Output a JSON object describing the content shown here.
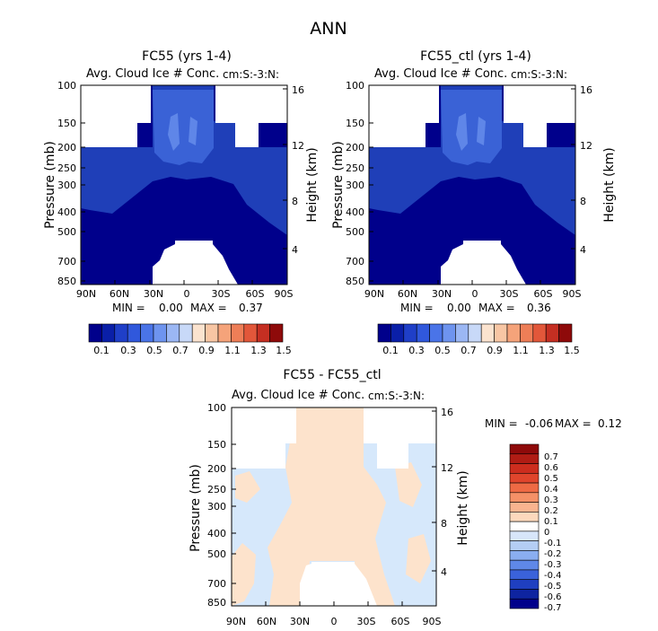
{
  "page_title": "ANN",
  "colors": {
    "field_dark": "#00008b",
    "field_mid": "#1f3fb8",
    "field_light": "#3a62d6",
    "field_lighter": "#5f86e8",
    "diff_neg": "#d6e8fb",
    "diff_pos": "#fde3cc",
    "outline": "#000000"
  },
  "chart_data": [
    {
      "id": "panel1",
      "type": "heatmap",
      "title": "FC55 (yrs 1-4)",
      "subtitle": "Avg. Cloud Ice # Conc.",
      "units": "cm:S:-3:N:",
      "ylabel": "Pressure (mb)",
      "ylabel_right": "Height (km)",
      "xticks": [
        "90N",
        "60N",
        "30N",
        "0",
        "30S",
        "60S",
        "90S"
      ],
      "xlim": [
        90,
        -90
      ],
      "yticks_pressure": [
        100,
        150,
        200,
        250,
        300,
        400,
        500,
        700,
        850
      ],
      "yticks_height": [
        16,
        12,
        8,
        4
      ],
      "min_label": "MIN =",
      "min_value": "0.00",
      "max_label": "MAX =",
      "max_value": "0.37",
      "colorbar_labels": [
        "0.1",
        "0.3",
        "0.5",
        "0.7",
        "0.9",
        "1.1",
        "1.3",
        "1.5"
      ],
      "colorbar_colors": [
        "#00008b",
        "#0a1fa8",
        "#1f3fc8",
        "#3058dc",
        "#4a74e8",
        "#6e94ef",
        "#9bb7f4",
        "#c8d9f8",
        "#fbe3cf",
        "#f8c6a4",
        "#f5a37a",
        "#ee7e57",
        "#e2573a",
        "#c52f22",
        "#8e0a0a"
      ]
    },
    {
      "id": "panel2",
      "type": "heatmap",
      "title": "FC55_ctl (yrs 1-4)",
      "subtitle": "Avg. Cloud Ice # Conc.",
      "units": "cm:S:-3:N:",
      "ylabel": "Pressure (mb)",
      "ylabel_right": "Height (km)",
      "xticks": [
        "90N",
        "60N",
        "30N",
        "0",
        "30S",
        "60S",
        "90S"
      ],
      "xlim": [
        90,
        -90
      ],
      "yticks_pressure": [
        100,
        150,
        200,
        250,
        300,
        400,
        500,
        700,
        850
      ],
      "yticks_height": [
        16,
        12,
        8,
        4
      ],
      "min_label": "MIN =",
      "min_value": "0.00",
      "max_label": "MAX =",
      "max_value": "0.36",
      "colorbar_labels": [
        "0.1",
        "0.3",
        "0.5",
        "0.7",
        "0.9",
        "1.1",
        "1.3",
        "1.5"
      ],
      "colorbar_colors": [
        "#00008b",
        "#0a1fa8",
        "#1f3fc8",
        "#3058dc",
        "#4a74e8",
        "#6e94ef",
        "#9bb7f4",
        "#c8d9f8",
        "#fbe3cf",
        "#f8c6a4",
        "#f5a37a",
        "#ee7e57",
        "#e2573a",
        "#c52f22",
        "#8e0a0a"
      ]
    },
    {
      "id": "panel3",
      "type": "heatmap",
      "title": "FC55 - FC55_ctl",
      "subtitle": "Avg. Cloud Ice # Conc.",
      "units": "cm:S:-3:N:",
      "ylabel": "Pressure (mb)",
      "ylabel_right": "Height (km)",
      "xticks": [
        "90N",
        "60N",
        "30N",
        "0",
        "30S",
        "60S",
        "90S"
      ],
      "xlim": [
        90,
        -90
      ],
      "yticks_pressure": [
        100,
        150,
        200,
        250,
        300,
        400,
        500,
        700,
        850
      ],
      "yticks_height": [
        16,
        12,
        8,
        4
      ],
      "min_label": "MIN =",
      "min_value": "-0.06",
      "max_label": "MAX =",
      "max_value": "0.12",
      "colorbar_labels": [
        "0.7",
        "0.6",
        "0.5",
        "0.4",
        "0.3",
        "0.2",
        "0.1",
        "0",
        "-0.1",
        "-0.2",
        "-0.3",
        "-0.4",
        "-0.5",
        "-0.6",
        "-0.7"
      ],
      "colorbar_colors": [
        "#8e0a0a",
        "#b01c14",
        "#cc2d1e",
        "#e0452c",
        "#ee6a44",
        "#f59167",
        "#f9b48f",
        "#fdd9bd",
        "#ffffff",
        "#d7e6fa",
        "#b4cdf4",
        "#8aaef0",
        "#5f88e8",
        "#3a62da",
        "#1f3fc0",
        "#0e24a0",
        "#00008b"
      ]
    }
  ]
}
